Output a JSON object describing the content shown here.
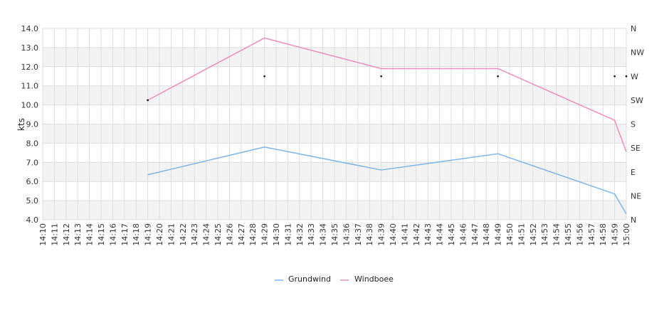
{
  "chart_data": {
    "type": "line",
    "title": "",
    "xlabel": "",
    "ylabel": "kts",
    "ylim": [
      4.0,
      14.0
    ],
    "y_ticks": [
      "4.0",
      "5.0",
      "6.0",
      "7.0",
      "8.0",
      "9.0",
      "10.0",
      "11.0",
      "12.0",
      "13.0",
      "14.0"
    ],
    "y2_ticks": [
      "N",
      "NE",
      "E",
      "SE",
      "S",
      "SW",
      "W",
      "NW",
      "N"
    ],
    "x_ticks": [
      "14:10",
      "14:11",
      "14:12",
      "14:13",
      "14:14",
      "14:15",
      "14:16",
      "14:17",
      "14:18",
      "14:19",
      "14:20",
      "14:21",
      "14:22",
      "14:23",
      "14:24",
      "14:25",
      "14:26",
      "14:27",
      "14:28",
      "14:29",
      "14:30",
      "14:31",
      "14:32",
      "14:33",
      "14:34",
      "14:35",
      "14:36",
      "14:37",
      "14:38",
      "14:39",
      "14:40",
      "14:41",
      "14:42",
      "14:43",
      "14:44",
      "14:45",
      "14:46",
      "14:47",
      "14:48",
      "14:49",
      "14:50",
      "14:51",
      "14:52",
      "14:53",
      "14:54",
      "14:55",
      "14:56",
      "14:57",
      "14:58",
      "14:59",
      "15:00"
    ],
    "grid": true,
    "legend_position": "bottom",
    "series": [
      {
        "name": "Grundwind",
        "color": "#7cb5ec",
        "points": [
          [
            "14:19",
            6.35
          ],
          [
            "14:29",
            7.8
          ],
          [
            "14:39",
            6.6
          ],
          [
            "14:49",
            7.45
          ],
          [
            "14:59",
            5.35
          ],
          [
            "15:00",
            4.3
          ]
        ]
      },
      {
        "name": "Windboee",
        "color": "#f08cbf",
        "points": [
          [
            "14:19",
            10.25
          ],
          [
            "14:29",
            13.5
          ],
          [
            "14:39",
            11.9
          ],
          [
            "14:49",
            11.9
          ],
          [
            "14:59",
            9.2
          ],
          [
            "15:00",
            7.55
          ]
        ]
      }
    ],
    "direction_markers": [
      [
        "14:19",
        "SW"
      ],
      [
        "14:29",
        "W"
      ],
      [
        "14:39",
        "W"
      ],
      [
        "14:49",
        "W"
      ],
      [
        "14:59",
        "W"
      ],
      [
        "15:00",
        "W"
      ]
    ]
  }
}
